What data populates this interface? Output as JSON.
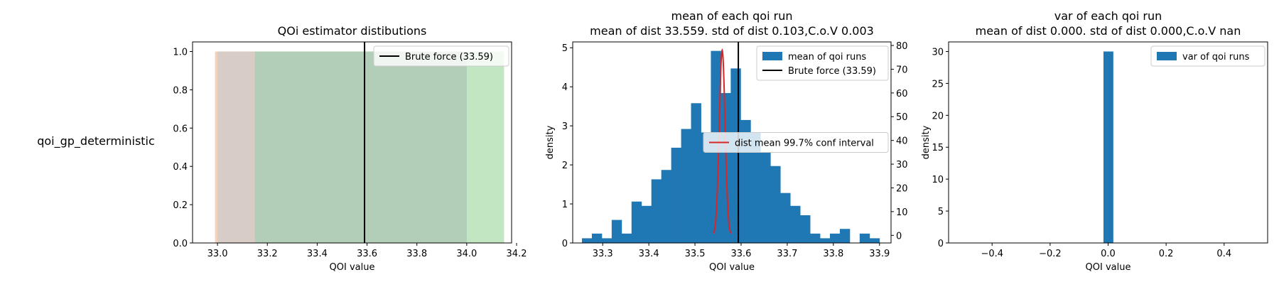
{
  "row_label": "qoi_gp_deterministic",
  "chart_data": [
    {
      "type": "area",
      "title_lines": [
        "QOi estimator distibutions"
      ],
      "xlabel": "QOI value",
      "ylabel": "",
      "xlim": [
        32.9,
        34.18
      ],
      "ylim": [
        0,
        1.05
      ],
      "xticks": [
        "33.0",
        "33.2",
        "33.4",
        "33.6",
        "33.8",
        "34.0",
        "34.2"
      ],
      "xtick_values": [
        33.0,
        33.2,
        33.4,
        33.6,
        33.8,
        34.0,
        34.2
      ],
      "yticks": [
        "0.0",
        "0.2",
        "0.4",
        "0.6",
        "0.8",
        "1.0"
      ],
      "ytick_values": [
        0,
        0.2,
        0.4,
        0.6,
        0.8,
        1.0
      ],
      "spans": [
        {
          "x0": 32.99,
          "x1": 34.0,
          "height": 1.0,
          "color": "#f4b183",
          "opacity": 0.6
        },
        {
          "x0": 33.15,
          "x1": 34.15,
          "height": 1.0,
          "color": "#8fd18f",
          "opacity": 0.55
        },
        {
          "x0": 33.0,
          "x1": 34.0,
          "height": 1.0,
          "color": "#9cc8e4",
          "opacity": 0.35
        }
      ],
      "vline": {
        "x": 33.59,
        "color": "#000000"
      },
      "legend": [
        {
          "label": "Brute force (33.59)",
          "kind": "line",
          "color": "#000000"
        }
      ],
      "legend_loc": "upper right"
    },
    {
      "type": "bar",
      "title_lines": [
        "mean of each qoi run",
        "mean of dist 33.559. std of dist 0.103,C.o.V 0.003"
      ],
      "xlabel": "QOI value",
      "ylabel": "density",
      "xlim": [
        33.235,
        33.925
      ],
      "ylim": [
        0,
        5.15
      ],
      "xticks": [
        "33.3",
        "33.4",
        "33.5",
        "33.6",
        "33.7",
        "33.8",
        "33.9"
      ],
      "xtick_values": [
        33.3,
        33.4,
        33.5,
        33.6,
        33.7,
        33.8,
        33.9
      ],
      "yticks": [
        "0",
        "1",
        "2",
        "3",
        "4",
        "5"
      ],
      "ytick_values": [
        0,
        1,
        2,
        3,
        4,
        5
      ],
      "bar_color": "#1f77b4",
      "bins_start": 33.255,
      "bin_width": 0.0215,
      "values": [
        0.12,
        0.24,
        0.12,
        0.59,
        0.24,
        1.06,
        0.95,
        1.63,
        1.87,
        2.44,
        2.92,
        3.58,
        2.83,
        4.92,
        3.84,
        4.47,
        3.15,
        2.83,
        2.33,
        1.97,
        1.28,
        0.95,
        0.71,
        0.24,
        0.12,
        0.24,
        0.36,
        0.0,
        0.24,
        0.12
      ],
      "vline": {
        "x": 33.594,
        "color": "#000000"
      },
      "secondary_y": {
        "ylim": [
          -3.2,
          81.5
        ],
        "ticks": [
          "0",
          "10",
          "20",
          "30",
          "40",
          "50",
          "60",
          "70",
          "80"
        ],
        "tick_values": [
          0,
          10,
          20,
          30,
          40,
          50,
          60,
          70,
          80
        ]
      },
      "conf_curve": {
        "mean": 33.559,
        "sd": 0.00625,
        "peak": 78,
        "x0": 33.54,
        "x1": 33.578,
        "color": "#d62728"
      },
      "legend": [
        {
          "label": "mean of qoi runs",
          "kind": "patch",
          "color": "#1f77b4"
        },
        {
          "label": "Brute force (33.59)",
          "kind": "line",
          "color": "#000000"
        }
      ],
      "legend_loc": "upper right",
      "legend2": [
        {
          "label": "dist mean 99.7% conf interval",
          "kind": "line",
          "color": "#d62728"
        }
      ],
      "legend2_loc": "center right"
    },
    {
      "type": "bar",
      "title_lines": [
        "var of each qoi run",
        "mean of dist 0.000. std of dist 0.000,C.o.V nan"
      ],
      "xlabel": "QOI value",
      "ylabel": "density",
      "xlim": [
        -0.55,
        0.55
      ],
      "ylim": [
        0,
        31.5
      ],
      "xticks": [
        "−0.4",
        "−0.2",
        "0.0",
        "0.2",
        "0.4"
      ],
      "xtick_values": [
        -0.4,
        -0.2,
        0.0,
        0.2,
        0.4
      ],
      "yticks": [
        "0",
        "5",
        "10",
        "15",
        "20",
        "25",
        "30"
      ],
      "ytick_values": [
        0,
        5,
        10,
        15,
        20,
        25,
        30
      ],
      "bar_color": "#1f77b4",
      "bins_start": -0.016,
      "bin_width": 0.033,
      "values": [
        30
      ],
      "legend": [
        {
          "label": "var of qoi runs",
          "kind": "patch",
          "color": "#1f77b4"
        }
      ],
      "legend_loc": "upper right"
    }
  ]
}
